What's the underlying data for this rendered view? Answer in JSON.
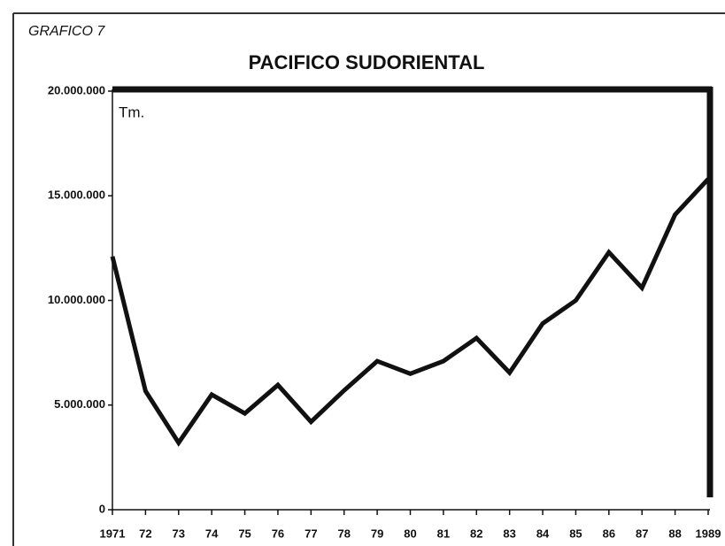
{
  "chart_data": {
    "type": "line",
    "label": "GRAFICO 7",
    "title": "PACIFICO SUDORIENTAL",
    "y_label": "Tm.",
    "categories": [
      "1971",
      "72",
      "73",
      "74",
      "75",
      "76",
      "77",
      "78",
      "79",
      "80",
      "81",
      "82",
      "83",
      "84",
      "85",
      "86",
      "87",
      "88",
      "1989"
    ],
    "series": [
      {
        "color": "#111111",
        "values": [
          12100000,
          5670000,
          3200000,
          5500000,
          4600000,
          5960000,
          4200000,
          5700000,
          7100000,
          6500000,
          7100000,
          8200000,
          6550000,
          8900000,
          10000000,
          12300000,
          10600000,
          14100000,
          15800000
        ]
      }
    ],
    "ylim": [
      0,
      20000000
    ],
    "yticks": [
      0,
      {
        "value": 5000000,
        "label": "5.000.000"
      },
      {
        "value": 10000000,
        "label": "10.000.000"
      },
      {
        "value": 15000000,
        "label": "15.000.000"
      },
      {
        "value": 20000000,
        "label": "20.000.000"
      }
    ],
    "grid": false
  }
}
